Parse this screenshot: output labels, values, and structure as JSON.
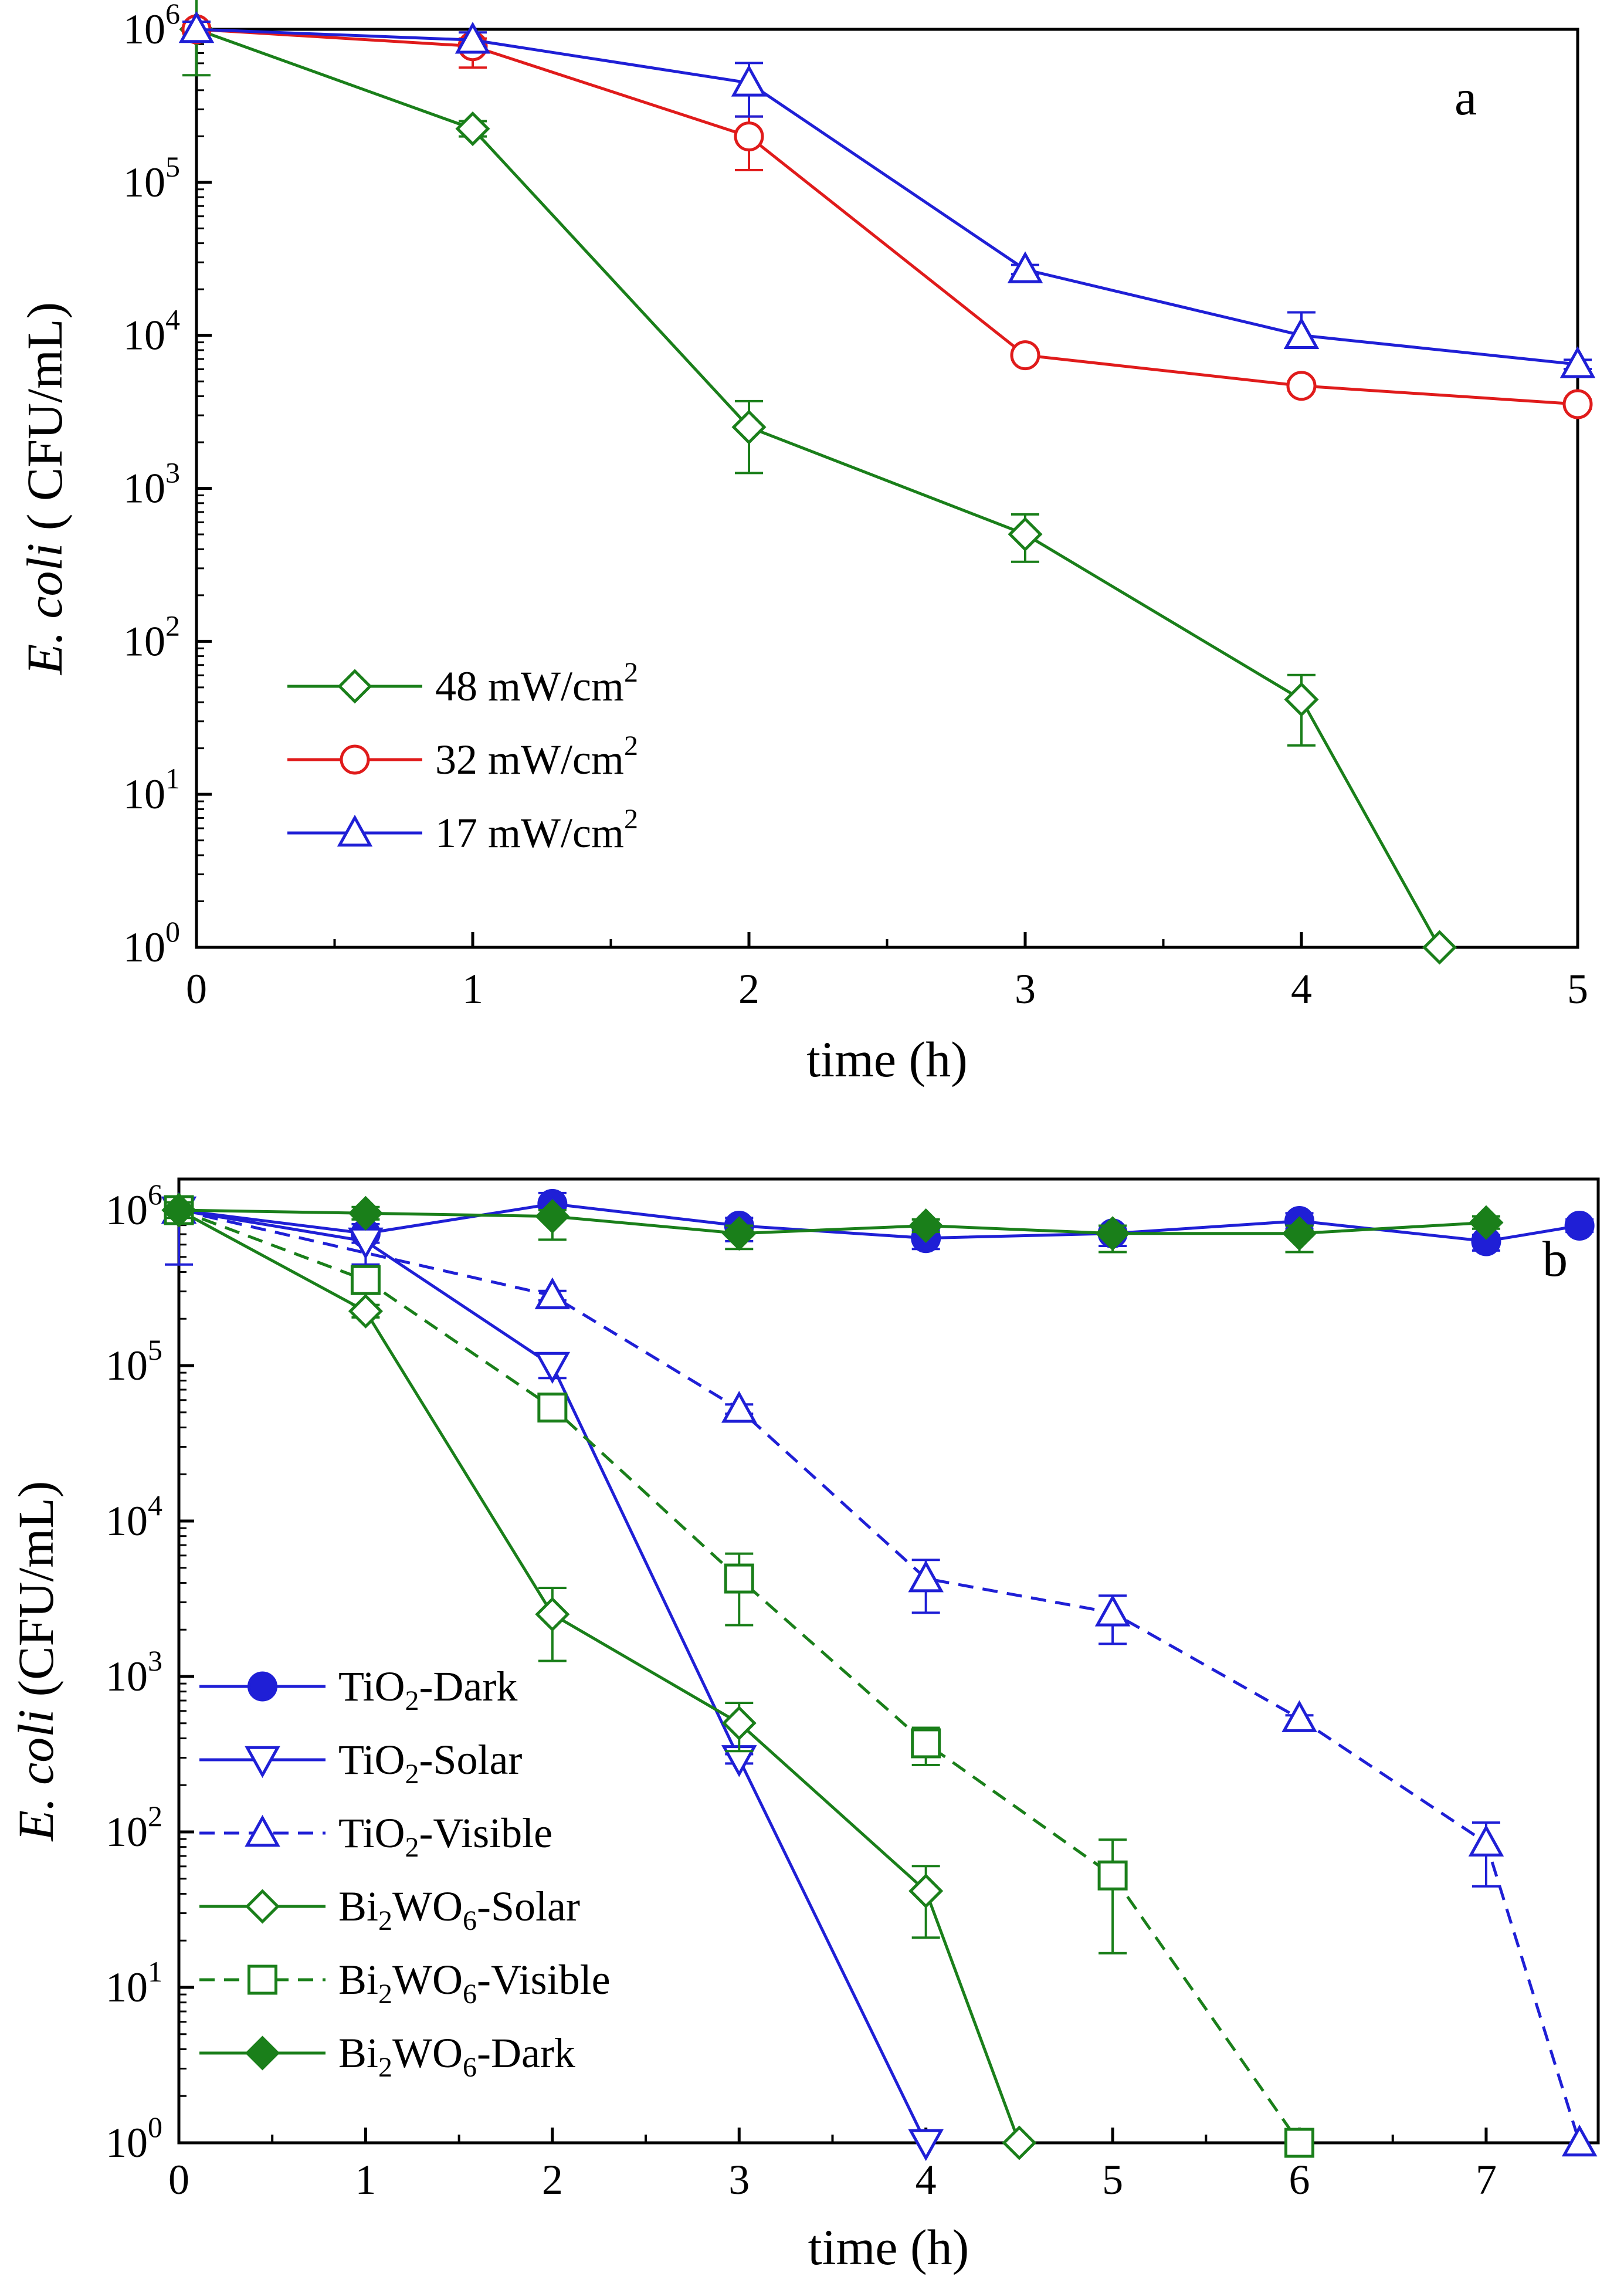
{
  "chart_data": [
    {
      "type": "line",
      "panel_label": "a",
      "xlabel": "time (h)",
      "ylabel_italic": "E. coli",
      "ylabel_rest": " ( CFU/mL)",
      "yscale": "log",
      "xlim": [
        0,
        5
      ],
      "ylim_exp": [
        0,
        6
      ],
      "xticks": [
        0,
        1,
        2,
        3,
        4,
        5
      ],
      "yticks_exp": [
        0,
        1,
        2,
        3,
        4,
        5,
        6
      ],
      "ytick_base": "10",
      "legend_position": "lower-left",
      "series": [
        {
          "name": "48 mW/cm",
          "name_sup": "2",
          "color": "#1a7f1a",
          "marker": "diamond-open",
          "dash": "solid",
          "x": [
            0,
            1,
            2,
            3,
            4,
            4.5
          ],
          "y_exp": [
            6.0,
            5.35,
            3.4,
            2.7,
            1.62,
            0
          ],
          "err_up": [
            0.3,
            0.05,
            0.17,
            0.13,
            0.16,
            0
          ],
          "err_down": [
            0.3,
            0.05,
            0.3,
            0.18,
            0.3,
            0
          ]
        },
        {
          "name": "32 mW/cm",
          "name_sup": "2",
          "color": "#e01b1b",
          "marker": "circle-open",
          "dash": "solid",
          "x": [
            0,
            1,
            2,
            3,
            4,
            5
          ],
          "y_exp": [
            6.0,
            5.89,
            5.3,
            3.87,
            3.67,
            3.55
          ],
          "err_up": [
            0.05,
            0.05,
            0.13,
            0.03,
            0.03,
            0.03
          ],
          "err_down": [
            0.05,
            0.14,
            0.22,
            0.03,
            0.03,
            0.03
          ]
        },
        {
          "name": "17 mW/cm",
          "name_sup": "2",
          "color": "#1f1fd6",
          "marker": "triangle-up-open",
          "dash": "solid",
          "x": [
            0,
            1,
            2,
            3,
            4,
            5
          ],
          "y_exp": [
            6.0,
            5.93,
            5.65,
            4.43,
            4.0,
            3.81
          ],
          "err_up": [
            0.05,
            0.05,
            0.13,
            0.03,
            0.15,
            0.03
          ],
          "err_down": [
            0.05,
            0.05,
            0.22,
            0.03,
            0.05,
            0.03
          ]
        }
      ]
    },
    {
      "type": "line",
      "panel_label": "b",
      "xlabel": "time (h)",
      "ylabel_italic": "E. coli",
      "ylabel_rest": " (CFU/mL)",
      "yscale": "log",
      "xlim": [
        0,
        7.6
      ],
      "ylim_exp": [
        0,
        6.2
      ],
      "xticks": [
        0,
        1,
        2,
        3,
        4,
        5,
        6,
        7
      ],
      "yticks_exp": [
        0,
        1,
        2,
        3,
        4,
        5,
        6
      ],
      "ytick_base": "10",
      "legend_position": "lower-left",
      "series": [
        {
          "name": "TiO",
          "name_sub": "2",
          "name_suffix": "-Dark",
          "color": "#1f1fd6",
          "marker": "circle-filled",
          "dash": "solid",
          "x": [
            0,
            1,
            2,
            3,
            4,
            5,
            6,
            7,
            7.5
          ],
          "y_exp": [
            6.0,
            5.85,
            6.04,
            5.9,
            5.82,
            5.85,
            5.93,
            5.8,
            5.9
          ],
          "err_up": [
            0.06,
            0.06,
            0.07,
            0.05,
            0.05,
            0.05,
            0.05,
            0.04,
            0.04
          ],
          "err_down": [
            0.06,
            0.06,
            0.07,
            0.1,
            0.07,
            0.08,
            0.05,
            0.06,
            0.04
          ]
        },
        {
          "name": "TiO",
          "name_sub": "2",
          "name_suffix": "-Solar",
          "color": "#1f1fd6",
          "marker": "triangle-down-open",
          "dash": "solid",
          "x": [
            0,
            1,
            2,
            3,
            4
          ],
          "y_exp": [
            6.0,
            5.8,
            5.0,
            2.47,
            0
          ],
          "err_up": [
            0.06,
            0.05,
            0.06,
            0.03,
            0
          ],
          "err_down": [
            0.35,
            0.15,
            0.08,
            0.03,
            0
          ]
        },
        {
          "name": "TiO",
          "name_sub": "2",
          "name_suffix": "-Visible",
          "color": "#1f1fd6",
          "marker": "triangle-up-open",
          "dash": "dashed",
          "x": [
            0,
            2,
            3,
            4,
            5,
            6,
            7,
            7.5
          ],
          "y_exp": [
            6.0,
            5.45,
            4.72,
            3.63,
            3.41,
            2.73,
            1.93,
            0
          ],
          "err_up": [
            0.05,
            0.03,
            0.03,
            0.12,
            0.11,
            0.02,
            0.13,
            0
          ],
          "err_down": [
            0.05,
            0.03,
            0.03,
            0.22,
            0.2,
            0.07,
            0.28,
            0
          ]
        },
        {
          "name": "Bi",
          "name_sub": "2",
          "name_mid": "WO",
          "name_sub2": "6",
          "name_suffix": "-Solar",
          "color": "#1a7f1a",
          "marker": "diamond-open",
          "dash": "solid",
          "x": [
            0,
            1,
            2,
            3,
            4,
            4.5
          ],
          "y_exp": [
            6.0,
            5.35,
            3.4,
            2.7,
            1.62,
            0
          ],
          "err_up": [
            0.05,
            0.04,
            0.17,
            0.13,
            0.16,
            0
          ],
          "err_down": [
            0.05,
            0.04,
            0.3,
            0.18,
            0.3,
            0
          ]
        },
        {
          "name": "Bi",
          "name_sub": "2",
          "name_mid": "WO",
          "name_sub2": "6",
          "name_suffix": "-Visible",
          "color": "#1a7f1a",
          "marker": "square-open",
          "dash": "dashed",
          "x": [
            0,
            1,
            2,
            3,
            4,
            5,
            6
          ],
          "y_exp": [
            6.0,
            5.55,
            4.73,
            3.63,
            2.57,
            1.72,
            0
          ],
          "err_up": [
            0.04,
            0.03,
            0.03,
            0.16,
            0.1,
            0.23,
            0
          ],
          "err_down": [
            0.04,
            0.03,
            0.03,
            0.3,
            0.14,
            0.5,
            0
          ]
        },
        {
          "name": "Bi",
          "name_sub": "2",
          "name_mid": "WO",
          "name_sub2": "6",
          "name_suffix": "-Dark",
          "color": "#1a7f1a",
          "marker": "diamond-filled",
          "dash": "solid",
          "x": [
            0,
            1,
            2,
            3,
            4,
            5,
            6,
            7
          ],
          "y_exp": [
            6.0,
            5.98,
            5.96,
            5.85,
            5.9,
            5.85,
            5.85,
            5.92
          ],
          "err_up": [
            0.05,
            0.04,
            0.04,
            0.05,
            0.04,
            0.05,
            0.05,
            0.04
          ],
          "err_down": [
            0.05,
            0.04,
            0.15,
            0.1,
            0.04,
            0.12,
            0.12,
            0.04
          ]
        }
      ]
    }
  ]
}
